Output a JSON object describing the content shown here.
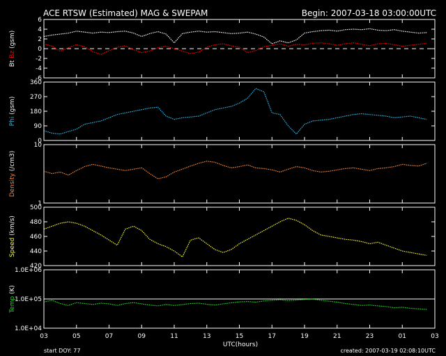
{
  "header": {
    "title": "ACE RTSW (Estimated) MAG & SWEPAM",
    "begin": "Begin: 2007-03-18 03:00:00UTC"
  },
  "footer": {
    "start_doy": "start DOY:  77",
    "created": "created: 2007-03-19 02:08:10UTC"
  },
  "colors": {
    "bt": "#ffffff",
    "bz": "#ff0000",
    "phi": "#33bbee",
    "density": "#ff8c3c",
    "speed": "#ffff33",
    "temp": "#22dd22"
  },
  "chart_data": [
    {
      "type": "line",
      "name": "mag-panel",
      "ylim": [
        -6,
        6
      ],
      "yticks": [
        "6",
        "4",
        "2",
        "0",
        "-2",
        "-4",
        "-6"
      ],
      "ytick_values": [
        6,
        4,
        2,
        0,
        -2,
        -4,
        -6
      ],
      "ylabel_parts": [
        "Bt",
        "Bz",
        "(gsm)"
      ],
      "dashed_zero": true,
      "series": [
        {
          "name": "Bt",
          "color": "#ffffff",
          "x": [
            0,
            0.5,
            1,
            1.5,
            2,
            2.5,
            3,
            3.5,
            4,
            4.5,
            5,
            5.5,
            6,
            6.5,
            7,
            7.5,
            8,
            8.5,
            9,
            9.5,
            10,
            10.5,
            11,
            11.5,
            12,
            12.5,
            13,
            13.5,
            14,
            14.5,
            15,
            15.5,
            16,
            16.5,
            17,
            17.5,
            18,
            18.5,
            19,
            19.5,
            20,
            20.5,
            21,
            21.5,
            22,
            22.5,
            23,
            23.5
          ],
          "y": [
            2.5,
            2.8,
            3.0,
            3.2,
            3.6,
            3.4,
            3.2,
            3.4,
            3.3,
            3.5,
            3.6,
            3.2,
            2.5,
            3.1,
            3.5,
            3.0,
            1.2,
            3.1,
            3.4,
            3.6,
            3.4,
            3.5,
            3.3,
            3.1,
            3.2,
            3.4,
            3.0,
            2.4,
            1.0,
            1.6,
            1.2,
            1.8,
            3.2,
            3.5,
            3.7,
            3.8,
            3.6,
            3.9,
            4.0,
            3.9,
            4.1,
            3.8,
            3.7,
            3.9,
            3.6,
            3.4,
            3.2,
            3.3
          ]
        },
        {
          "name": "Bz",
          "color": "#ff0000",
          "x": [
            0,
            0.5,
            1,
            1.5,
            2,
            2.5,
            3,
            3.5,
            4,
            4.5,
            5,
            5.5,
            6,
            6.5,
            7,
            7.5,
            8,
            8.5,
            9,
            9.5,
            10,
            10.5,
            11,
            11.5,
            12,
            12.5,
            13,
            13.5,
            14,
            14.5,
            15,
            15.5,
            16,
            16.5,
            17,
            17.5,
            18,
            18.5,
            19,
            19.5,
            20,
            20.5,
            21,
            21.5,
            22,
            22.5,
            23,
            23.5
          ],
          "y": [
            1.0,
            0.5,
            -0.5,
            0.2,
            0.8,
            0.4,
            -0.6,
            -1.2,
            -0.4,
            0.3,
            0.6,
            -0.2,
            -0.8,
            -0.5,
            0.2,
            0.5,
            0.0,
            -0.5,
            -1.0,
            -0.7,
            0.3,
            0.8,
            1.0,
            0.6,
            0.3,
            -0.8,
            -0.4,
            0.4,
            0.7,
            1.0,
            0.5,
            0.9,
            0.8,
            1.1,
            1.2,
            1.0,
            0.7,
            1.0,
            1.2,
            0.9,
            0.6,
            1.0,
            1.1,
            0.8,
            0.5,
            0.7,
            0.9,
            1.1
          ]
        }
      ]
    },
    {
      "type": "scatter",
      "name": "phi-panel",
      "ylim": [
        0,
        360
      ],
      "yticks": [
        "360",
        "270",
        "180",
        "90",
        "0"
      ],
      "ytick_values": [
        360,
        270,
        180,
        90,
        0
      ],
      "ylabel": "Phi (gsm)",
      "series": [
        {
          "name": "Phi",
          "color": "#33bbee",
          "x": [
            0,
            0.5,
            1,
            1.5,
            2,
            2.5,
            3,
            3.5,
            4,
            4.5,
            5,
            5.5,
            6,
            6.5,
            7,
            7.5,
            8,
            8.5,
            9,
            9.5,
            10,
            10.5,
            11,
            11.5,
            12,
            12.5,
            13,
            13.5,
            14,
            14.5,
            15,
            15.5,
            16,
            16.5,
            17,
            17.5,
            18,
            18.5,
            19,
            19.5,
            20,
            20.5,
            21,
            21.5,
            22,
            22.5,
            23,
            23.5
          ],
          "y": [
            60,
            45,
            40,
            55,
            70,
            100,
            110,
            120,
            140,
            160,
            170,
            180,
            190,
            200,
            205,
            150,
            130,
            140,
            145,
            150,
            170,
            190,
            200,
            210,
            230,
            260,
            320,
            300,
            170,
            160,
            90,
            40,
            100,
            120,
            125,
            130,
            140,
            150,
            160,
            165,
            160,
            155,
            150,
            140,
            145,
            150,
            140,
            130
          ]
        }
      ]
    },
    {
      "type": "scatter",
      "name": "density-panel",
      "ylim": [
        1,
        10
      ],
      "yscale": "log",
      "yticks": [
        "10",
        "1"
      ],
      "ytick_values": [
        10,
        1
      ],
      "ylabel": "Density (/cm3)",
      "series": [
        {
          "name": "Density",
          "color": "#ff8c3c",
          "x": [
            0,
            0.5,
            1,
            1.5,
            2,
            2.5,
            3,
            3.5,
            4,
            4.5,
            5,
            5.5,
            6,
            6.5,
            7,
            7.5,
            8,
            8.5,
            9,
            9.5,
            10,
            10.5,
            11,
            11.5,
            12,
            12.5,
            13,
            13.5,
            14,
            14.5,
            15,
            15.5,
            16,
            16.5,
            17,
            17.5,
            18,
            18.5,
            19,
            19.5,
            20,
            20.5,
            21,
            21.5,
            22,
            22.5,
            23,
            23.5
          ],
          "y": [
            3.5,
            3.2,
            3.4,
            3.0,
            3.6,
            4.2,
            4.6,
            4.3,
            4.0,
            3.8,
            3.6,
            3.8,
            4.0,
            3.2,
            2.6,
            2.8,
            3.4,
            3.8,
            4.3,
            4.8,
            5.2,
            5.0,
            4.4,
            4.0,
            4.2,
            4.5,
            4.0,
            3.9,
            3.7,
            3.4,
            3.8,
            4.2,
            4.0,
            3.6,
            3.4,
            3.5,
            3.7,
            3.9,
            4.0,
            3.8,
            3.6,
            3.9,
            4.0,
            4.2,
            4.6,
            4.4,
            4.3,
            4.8
          ]
        }
      ]
    },
    {
      "type": "scatter",
      "name": "speed-panel",
      "ylim": [
        420,
        500
      ],
      "yticks": [
        "500",
        "480",
        "460",
        "440",
        "420"
      ],
      "ytick_values": [
        500,
        480,
        460,
        440,
        420
      ],
      "ylabel": "Speed (km/s)",
      "series": [
        {
          "name": "Speed",
          "color": "#ffff33",
          "x": [
            0,
            0.5,
            1,
            1.5,
            2,
            2.5,
            3,
            3.5,
            4,
            4.5,
            5,
            5.5,
            6,
            6.5,
            7,
            7.5,
            8,
            8.5,
            9,
            9.5,
            10,
            10.5,
            11,
            11.5,
            12,
            12.5,
            13,
            13.5,
            14,
            14.5,
            15,
            15.5,
            16,
            16.5,
            17,
            17.5,
            18,
            18.5,
            19,
            19.5,
            20,
            20.5,
            21,
            21.5,
            22,
            22.5,
            23,
            23.5
          ],
          "y": [
            470,
            474,
            478,
            480,
            478,
            474,
            468,
            462,
            455,
            448,
            470,
            474,
            468,
            456,
            450,
            446,
            440,
            432,
            455,
            458,
            450,
            442,
            438,
            442,
            450,
            456,
            462,
            468,
            474,
            480,
            485,
            482,
            476,
            468,
            462,
            460,
            458,
            456,
            455,
            453,
            450,
            452,
            448,
            444,
            440,
            438,
            436,
            434
          ]
        }
      ]
    },
    {
      "type": "scatter",
      "name": "temp-panel",
      "ylim": [
        10000,
        1000000
      ],
      "yscale": "log",
      "yticks": [
        "1.0E+06",
        "1.0E+05",
        "1.0E+04"
      ],
      "ytick_values": [
        1000000,
        100000,
        10000
      ],
      "ylabel": "Temp (K)",
      "reference_line": 100000,
      "series": [
        {
          "name": "Temp",
          "color": "#22dd22",
          "x": [
            0,
            0.5,
            1,
            1.5,
            2,
            2.5,
            3,
            3.5,
            4,
            4.5,
            5,
            5.5,
            6,
            6.5,
            7,
            7.5,
            8,
            8.5,
            9,
            9.5,
            10,
            10.5,
            11,
            11.5,
            12,
            12.5,
            13,
            13.5,
            14,
            14.5,
            15,
            15.5,
            16,
            16.5,
            17,
            17.5,
            18,
            18.5,
            19,
            19.5,
            20,
            20.5,
            21,
            21.5,
            22,
            22.5,
            23,
            23.5
          ],
          "y": [
            80000,
            90000,
            70000,
            60000,
            75000,
            70000,
            65000,
            72000,
            68000,
            60000,
            70000,
            75000,
            68000,
            62000,
            58000,
            65000,
            60000,
            64000,
            70000,
            72000,
            66000,
            62000,
            68000,
            74000,
            80000,
            82000,
            78000,
            86000,
            90000,
            94000,
            88000,
            92000,
            96000,
            100000,
            90000,
            84000,
            78000,
            70000,
            65000,
            60000,
            62000,
            58000,
            55000,
            50000,
            52000,
            48000,
            46000,
            44000
          ]
        }
      ]
    }
  ],
  "x_axis": {
    "label": "UTC(hours)",
    "range": [
      0,
      24
    ],
    "ticks": [
      "03",
      "05",
      "07",
      "09",
      "11",
      "13",
      "15",
      "17",
      "19",
      "21",
      "23",
      "01",
      "03"
    ]
  }
}
